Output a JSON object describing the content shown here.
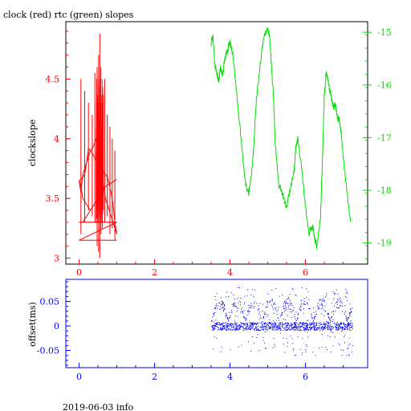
{
  "title": "clock (red) rtc (green) slopes",
  "footer": "2019-06-03 info",
  "colors": {
    "clock": "#ff0000",
    "rtc": "#00dd00",
    "offset": "#0000ff",
    "frame": "#000000"
  },
  "chart_data": [
    {
      "type": "line",
      "title": "clock (red) rtc (green) slopes",
      "xlabel": "",
      "ylabel": "clockslope",
      "xlim": [
        -0.35,
        7.65
      ],
      "ylim": [
        2.95,
        4.98
      ],
      "y2lim": [
        -19.4,
        -14.8
      ],
      "x_ticks": [
        "0",
        "2",
        "4",
        "6"
      ],
      "x_tick_values": [
        0,
        2,
        4,
        6
      ],
      "y_ticks": [
        "3",
        "3.5",
        "4",
        "4.5"
      ],
      "y_tick_values": [
        3,
        3.5,
        4,
        4.5
      ],
      "y2_ticks": [
        "-15",
        "-16",
        "-17",
        "-18",
        "-19"
      ],
      "y2_tick_values": [
        -15,
        -16,
        -17,
        -18,
        -19
      ],
      "series": [
        {
          "axis": "left",
          "color": "#ff0000",
          "x": [
            0.0,
            0.05,
            0.1,
            0.15,
            0.2,
            0.25,
            0.3,
            0.35,
            0.4,
            0.45,
            0.5,
            0.55,
            0.6,
            0.65,
            0.7,
            0.75,
            0.8,
            0.85,
            0.9,
            0.95,
            1.0,
            0.95,
            0.9,
            0.85,
            0.8,
            0.75,
            0.7,
            0.65,
            0.6,
            0.55,
            0.5,
            0.45,
            0.4,
            0.35,
            0.3,
            0.25,
            0.2,
            0.15,
            0.1,
            0.05,
            0.0,
            0.05,
            0.1,
            0.2,
            0.3,
            0.4,
            0.5,
            0.6,
            0.7,
            0.8,
            0.9,
            1.0,
            0.9,
            0.8,
            0.7,
            0.6,
            0.5,
            0.4,
            0.3,
            0.2,
            0.1,
            0.0,
            1.0,
            0.0
          ],
          "y": [
            3.65,
            3.55,
            3.7,
            3.75,
            3.8,
            3.85,
            3.9,
            3.92,
            3.95,
            4.0,
            4.05,
            3.9,
            3.7,
            3.6,
            3.5,
            3.45,
            3.4,
            3.35,
            3.3,
            3.25,
            3.2,
            3.3,
            3.45,
            3.55,
            3.62,
            3.68,
            3.7,
            3.72,
            3.75,
            3.78,
            3.8,
            3.82,
            3.85,
            3.88,
            3.9,
            3.92,
            3.8,
            3.7,
            3.68,
            3.66,
            3.65,
            3.6,
            3.5,
            3.45,
            3.4,
            3.45,
            3.5,
            3.55,
            3.6,
            3.62,
            3.64,
            3.66,
            3.64,
            3.62,
            3.6,
            3.55,
            3.5,
            3.45,
            3.4,
            3.35,
            3.3,
            3.3,
            3.3,
            3.15
          ]
        },
        {
          "axis": "left",
          "color": "#ff0000",
          "style": "spikes",
          "x": [
            0.05,
            0.15,
            0.25,
            0.35,
            0.42,
            0.48,
            0.52,
            0.55,
            0.58,
            0.62,
            0.68,
            0.75,
            0.82,
            0.88,
            0.95
          ],
          "y_low": [
            3.2,
            3.3,
            3.4,
            3.35,
            3.3,
            3.1,
            3.05,
            3.0,
            3.2,
            3.25,
            3.3,
            3.35,
            3.2,
            3.25,
            3.15
          ],
          "y_high": [
            4.5,
            4.4,
            4.3,
            4.2,
            4.55,
            4.6,
            4.7,
            4.88,
            4.6,
            4.3,
            4.5,
            4.2,
            4.1,
            4.0,
            3.9
          ]
        },
        {
          "axis": "right",
          "color": "#00dd00",
          "x": [
            3.5,
            3.55,
            3.6,
            3.65,
            3.7,
            3.75,
            3.8,
            3.85,
            3.9,
            3.95,
            4.0,
            4.05,
            4.1,
            4.2,
            4.3,
            4.4,
            4.5,
            4.6,
            4.65,
            4.7,
            4.8,
            4.9,
            5.0,
            5.05,
            5.1,
            5.15,
            5.2,
            5.3,
            5.4,
            5.5,
            5.6,
            5.7,
            5.75,
            5.8,
            5.9,
            6.0,
            6.1,
            6.2,
            6.25,
            6.3,
            6.4,
            6.45,
            6.5,
            6.55,
            6.6,
            6.65,
            6.7,
            6.75,
            6.8,
            6.85,
            6.9,
            6.95,
            7.0,
            7.1,
            7.2
          ],
          "y": [
            -15.2,
            -15.1,
            -15.6,
            -15.8,
            -15.9,
            -15.7,
            -15.8,
            -15.6,
            -15.4,
            -15.3,
            -15.2,
            -15.3,
            -15.6,
            -16.3,
            -17.1,
            -17.8,
            -18.1,
            -17.5,
            -16.9,
            -16.3,
            -15.6,
            -15.1,
            -14.9,
            -15.1,
            -15.6,
            -16.2,
            -17.1,
            -17.9,
            -18.1,
            -18.3,
            -18.0,
            -17.6,
            -17.2,
            -17.0,
            -17.6,
            -18.3,
            -18.8,
            -18.7,
            -18.9,
            -19.1,
            -18.5,
            -17.5,
            -16.2,
            -15.8,
            -15.9,
            -16.1,
            -16.3,
            -16.4,
            -16.4,
            -16.6,
            -16.7,
            -16.9,
            -17.4,
            -18.0,
            -18.6
          ]
        }
      ]
    },
    {
      "type": "scatter",
      "xlabel": "",
      "ylabel": "offset(ms)",
      "xlim": [
        -0.35,
        7.65
      ],
      "ylim": [
        -0.085,
        0.095
      ],
      "x_ticks": [
        "0",
        "2",
        "4",
        "6"
      ],
      "x_tick_values": [
        0,
        2,
        4,
        6
      ],
      "y_ticks": [
        "0.05",
        "0",
        "-0.05"
      ],
      "y_tick_values": [
        0.05,
        0,
        -0.05
      ],
      "series": [
        {
          "color": "#0000ff",
          "x_range": [
            3.5,
            7.25
          ],
          "center": 0.0,
          "band": 0.008,
          "scatter_spread": [
            -0.06,
            0.08
          ],
          "upper_arcs_peak": 0.05
        }
      ]
    }
  ]
}
